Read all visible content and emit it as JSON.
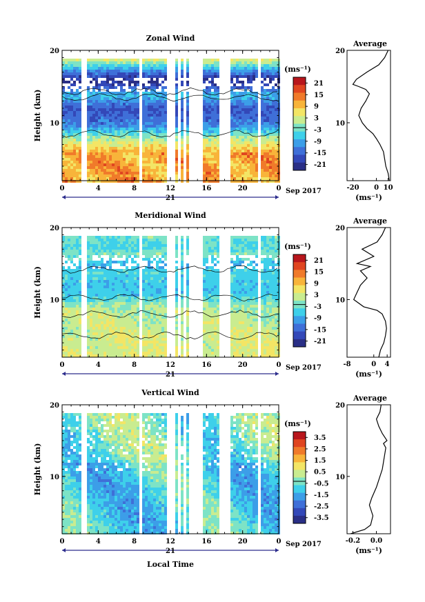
{
  "colors": {
    "colormap": [
      "#2a2f86",
      "#3348b8",
      "#3f6fd8",
      "#3c9ee8",
      "#3ed0ea",
      "#7de3c6",
      "#c9ec90",
      "#f3e565",
      "#f8b43a",
      "#f07a2a",
      "#e04520",
      "#b8161c"
    ],
    "axis": "#000000",
    "time_axis": "#2c2c8c"
  },
  "chart_data": [
    {
      "type": "heatmap",
      "title": "Zonal Wind",
      "ylabel": "Height (km)",
      "xlabel": "",
      "y_ticks": [
        10,
        20
      ],
      "x_ticks": [
        "0",
        "4",
        "8",
        "12",
        "16",
        "20",
        "0"
      ],
      "x_range_hours": [
        0,
        24
      ],
      "y_range_km": [
        2,
        20
      ],
      "date_day": "21",
      "date_label": "Sep 2017",
      "colorbar": {
        "unit": "(ms⁻¹)",
        "ticks": [
          "21",
          "15",
          "9",
          "3",
          "-3",
          "-9",
          "-15",
          "-21"
        ],
        "range": [
          -24,
          24
        ]
      },
      "profile": {
        "title": "Average",
        "xlabel": "(ms⁻¹)",
        "x_ticks": [
          "-20",
          "0",
          "10"
        ],
        "y_ticks": [
          10,
          20
        ],
        "xlim": [
          -25,
          12
        ],
        "points": [
          [
            11,
            2.0
          ],
          [
            10,
            3.0
          ],
          [
            8,
            4.0
          ],
          [
            7,
            5.0
          ],
          [
            6,
            6.0
          ],
          [
            3,
            7.0
          ],
          [
            0,
            7.8
          ],
          [
            -3,
            8.5
          ],
          [
            -8,
            9.2
          ],
          [
            -12,
            10.0
          ],
          [
            -15,
            11.0
          ],
          [
            -13,
            12.0
          ],
          [
            -9,
            13.0
          ],
          [
            -6,
            14.0
          ],
          [
            -9,
            14.6
          ],
          [
            -15,
            15.0
          ],
          [
            -20,
            15.3
          ],
          [
            -17,
            16.0
          ],
          [
            -8,
            17.0
          ],
          [
            2,
            18.0
          ],
          [
            7,
            19.0
          ],
          [
            10,
            20.0
          ]
        ]
      }
    },
    {
      "type": "heatmap",
      "title": "Meridional Wind",
      "ylabel": "Height (km)",
      "xlabel": "",
      "y_ticks": [
        10,
        20
      ],
      "x_ticks": [
        "0",
        "4",
        "8",
        "12",
        "16",
        "20",
        "0"
      ],
      "x_range_hours": [
        0,
        24
      ],
      "y_range_km": [
        2,
        20
      ],
      "date_day": "21",
      "date_label": "Sep 2017",
      "colorbar": {
        "unit": "(ms⁻¹)",
        "ticks": [
          "21",
          "15",
          "9",
          "3",
          "-3",
          "-9",
          "-15",
          "-21"
        ],
        "range": [
          -24,
          24
        ]
      },
      "profile": {
        "title": "Average",
        "xlabel": "(ms⁻¹)",
        "x_ticks": [
          "-8",
          "0",
          "4"
        ],
        "y_ticks": [
          10,
          20
        ],
        "xlim": [
          -8,
          5
        ],
        "points": [
          [
            1.5,
            2.0
          ],
          [
            2.0,
            3.0
          ],
          [
            3.0,
            4.0
          ],
          [
            3.5,
            5.0
          ],
          [
            3.8,
            6.0
          ],
          [
            3.5,
            7.0
          ],
          [
            2.5,
            8.0
          ],
          [
            1.0,
            8.5
          ],
          [
            -3.0,
            9.0
          ],
          [
            -6.0,
            10.0
          ],
          [
            -5.0,
            11.0
          ],
          [
            -4.0,
            12.0
          ],
          [
            -2.0,
            13.0
          ],
          [
            -4.0,
            14.0
          ],
          [
            -1.0,
            14.6
          ],
          [
            -5.0,
            15.0
          ],
          [
            0.0,
            16.0
          ],
          [
            -3.5,
            17.0
          ],
          [
            1.0,
            18.0
          ],
          [
            2.5,
            19.0
          ],
          [
            3.5,
            20.0
          ]
        ]
      }
    },
    {
      "type": "heatmap",
      "title": "Vertical Wind",
      "ylabel": "Height (km)",
      "xlabel": "Local Time",
      "y_ticks": [
        10,
        20
      ],
      "x_ticks": [
        "0",
        "4",
        "8",
        "12",
        "16",
        "20",
        "0"
      ],
      "x_range_hours": [
        0,
        24
      ],
      "y_range_km": [
        2,
        20
      ],
      "date_day": "21",
      "date_label": "Sep 2017",
      "colorbar": {
        "unit": "(ms⁻¹)",
        "ticks": [
          "3.5",
          "2.5",
          "1.5",
          "0.5",
          "-0.5",
          "-1.5",
          "-2.5",
          "-3.5"
        ],
        "range": [
          -4,
          4
        ]
      },
      "profile": {
        "title": "Average",
        "xlabel": "(ms⁻¹)",
        "x_ticks": [
          "-0.2",
          "0.0"
        ],
        "y_ticks": [
          10,
          20
        ],
        "xlim": [
          -0.25,
          0.12
        ],
        "points": [
          [
            -0.22,
            2.0
          ],
          [
            -0.1,
            2.6
          ],
          [
            -0.05,
            3.2
          ],
          [
            -0.03,
            4.5
          ],
          [
            -0.06,
            6.0
          ],
          [
            -0.04,
            7.0
          ],
          [
            0.0,
            8.5
          ],
          [
            0.03,
            10.0
          ],
          [
            0.05,
            11.0
          ],
          [
            0.06,
            12.0
          ],
          [
            0.07,
            13.0
          ],
          [
            0.08,
            14.0
          ],
          [
            0.06,
            14.6
          ],
          [
            0.09,
            15.0
          ],
          [
            0.05,
            16.0
          ],
          [
            0.02,
            17.0
          ],
          [
            0.0,
            18.0
          ],
          [
            0.03,
            19.0
          ],
          [
            0.04,
            20.0
          ]
        ]
      }
    }
  ]
}
